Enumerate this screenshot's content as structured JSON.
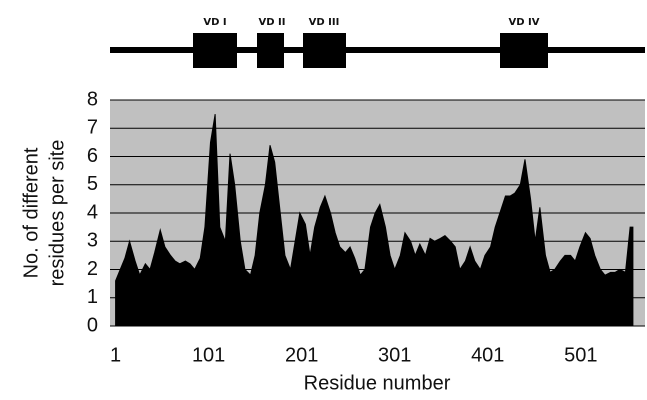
{
  "chart_data": {
    "type": "area",
    "domains": [
      "VD I",
      "VD II",
      "VD III",
      "VD IV"
    ],
    "ylabel": [
      "No. of different",
      "residues per site"
    ],
    "xlabel": "Residue number",
    "x": [
      1,
      6,
      11,
      16,
      22,
      27,
      33,
      38,
      43,
      49,
      54,
      60,
      65,
      70,
      76,
      81,
      86,
      92,
      97,
      103,
      108,
      113,
      119,
      124,
      129,
      135,
      140,
      146,
      151,
      156,
      162,
      167,
      172,
      178,
      183,
      189,
      194,
      199,
      205,
      210,
      215,
      221,
      226,
      232,
      237,
      242,
      248,
      253,
      258,
      264,
      269,
      275,
      280,
      285,
      291,
      296,
      301,
      307,
      312,
      318,
      323,
      328,
      334,
      339,
      344,
      350,
      355,
      361,
      366,
      371,
      377,
      382,
      387,
      393,
      398,
      404,
      409,
      414,
      420,
      425,
      430,
      436,
      441,
      447,
      452,
      457,
      463,
      468,
      473,
      479,
      484,
      490,
      495,
      500,
      506,
      511,
      516,
      522,
      527,
      533,
      538,
      543,
      549,
      554,
      557
    ],
    "values": [
      1.6,
      2.0,
      2.4,
      3.0,
      2.3,
      1.8,
      2.2,
      2.0,
      2.6,
      3.4,
      2.8,
      2.5,
      2.3,
      2.2,
      2.3,
      2.2,
      2.0,
      2.4,
      3.5,
      6.5,
      7.5,
      3.5,
      3.0,
      6.1,
      5.0,
      3.0,
      2.0,
      1.8,
      2.5,
      4.0,
      5.0,
      6.4,
      5.8,
      4.0,
      2.5,
      2.0,
      3.0,
      4.0,
      3.6,
      2.5,
      3.5,
      4.2,
      4.6,
      4.0,
      3.3,
      2.8,
      2.6,
      2.8,
      2.4,
      1.8,
      2.0,
      3.5,
      4.0,
      4.3,
      3.5,
      2.5,
      2.0,
      2.5,
      3.3,
      3.0,
      2.5,
      2.9,
      2.5,
      3.1,
      3.0,
      3.1,
      3.2,
      3.0,
      2.8,
      2.0,
      2.3,
      2.8,
      2.3,
      2.0,
      2.5,
      2.8,
      3.5,
      4.0,
      4.6,
      4.6,
      4.7,
      5.0,
      5.9,
      4.5,
      3.0,
      4.2,
      2.5,
      1.9,
      2.0,
      2.3,
      2.5,
      2.5,
      2.3,
      2.8,
      3.3,
      3.1,
      2.5,
      2.0,
      1.8,
      1.9,
      1.9,
      2.0,
      1.9,
      3.5,
      3.5
    ],
    "color": "#000000",
    "background": "#c0c0c0",
    "xlim": [
      -5,
      570
    ],
    "xticks": [
      1,
      101,
      201,
      301,
      401,
      501
    ],
    "ylim": [
      0,
      8
    ],
    "yticks": [
      0,
      1,
      2,
      3,
      4,
      5,
      6,
      7,
      8
    ],
    "grid": true
  }
}
